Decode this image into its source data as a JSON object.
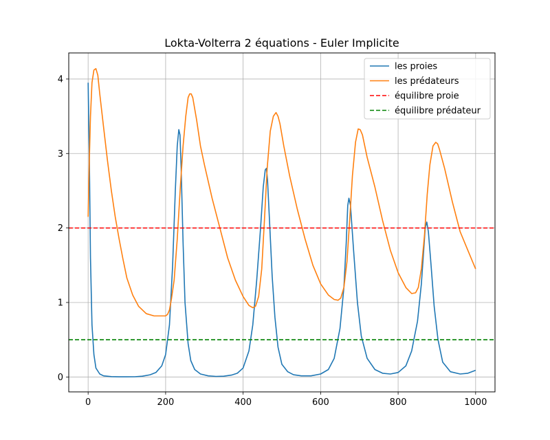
{
  "chart_data": {
    "type": "line",
    "title": "Lokta-Volterra 2 équations - Euler Implicite",
    "xlabel": "",
    "ylabel": "",
    "xlim": [
      -50,
      1050
    ],
    "ylim": [
      -0.2,
      4.35
    ],
    "xticks": [
      0,
      200,
      400,
      600,
      800,
      1000
    ],
    "yticks": [
      0,
      1,
      2,
      3,
      4
    ],
    "grid": true,
    "legend_position": "top-right",
    "colors": {
      "proies": "#1f77b4",
      "predateurs": "#ff7f0e",
      "equilibre_proie": "#ff0000",
      "equilibre_predateur": "#008000"
    },
    "series": [
      {
        "name": "les proies",
        "style": "solid",
        "x": [
          0,
          3,
          6,
          10,
          15,
          20,
          30,
          40,
          60,
          80,
          100,
          120,
          140,
          160,
          175,
          190,
          200,
          210,
          218,
          225,
          230,
          234,
          237,
          240,
          245,
          250,
          258,
          265,
          275,
          290,
          310,
          330,
          350,
          370,
          385,
          400,
          415,
          425,
          435,
          445,
          452,
          457,
          460,
          463,
          468,
          475,
          482,
          490,
          500,
          515,
          530,
          550,
          575,
          600,
          620,
          635,
          650,
          660,
          666,
          670,
          673,
          677,
          685,
          695,
          705,
          720,
          740,
          760,
          780,
          800,
          820,
          835,
          850,
          860,
          866,
          870,
          874,
          878,
          885,
          893,
          903,
          915,
          935,
          960,
          980,
          1000
        ],
        "values": [
          3.95,
          3.0,
          1.6,
          0.7,
          0.3,
          0.12,
          0.04,
          0.015,
          0.005,
          0.002,
          0.002,
          0.003,
          0.01,
          0.03,
          0.06,
          0.15,
          0.3,
          0.7,
          1.5,
          2.5,
          3.1,
          3.32,
          3.25,
          2.8,
          1.8,
          1.0,
          0.45,
          0.22,
          0.1,
          0.04,
          0.015,
          0.008,
          0.01,
          0.025,
          0.05,
          0.12,
          0.35,
          0.7,
          1.3,
          2.0,
          2.55,
          2.78,
          2.8,
          2.65,
          2.1,
          1.35,
          0.8,
          0.4,
          0.17,
          0.07,
          0.03,
          0.015,
          0.015,
          0.04,
          0.1,
          0.25,
          0.65,
          1.2,
          1.8,
          2.3,
          2.4,
          2.3,
          1.7,
          1.0,
          0.55,
          0.25,
          0.1,
          0.05,
          0.04,
          0.06,
          0.15,
          0.35,
          0.75,
          1.25,
          1.7,
          2.0,
          2.08,
          1.95,
          1.5,
          0.95,
          0.5,
          0.2,
          0.07,
          0.04,
          0.05,
          0.09
        ]
      },
      {
        "name": "les prédateurs",
        "style": "solid",
        "x": [
          0,
          3,
          6,
          10,
          15,
          20,
          25,
          30,
          40,
          50,
          60,
          70,
          80,
          90,
          100,
          115,
          130,
          150,
          170,
          185,
          195,
          200,
          205,
          210,
          215,
          222,
          230,
          238,
          245,
          252,
          258,
          262,
          266,
          270,
          280,
          290,
          300,
          320,
          340,
          360,
          380,
          400,
          415,
          425,
          432,
          440,
          448,
          455,
          462,
          470,
          478,
          485,
          490,
          495,
          505,
          520,
          540,
          560,
          580,
          600,
          620,
          635,
          645,
          652,
          660,
          668,
          675,
          682,
          690,
          697,
          702,
          708,
          720,
          740,
          760,
          780,
          800,
          820,
          835,
          845,
          852,
          860,
          868,
          875,
          882,
          890,
          897,
          902,
          907,
          920,
          940,
          960,
          980,
          1000
        ],
        "values": [
          2.15,
          2.9,
          3.5,
          3.95,
          4.12,
          4.14,
          4.05,
          3.8,
          3.35,
          2.9,
          2.5,
          2.15,
          1.85,
          1.58,
          1.33,
          1.1,
          0.95,
          0.85,
          0.82,
          0.82,
          0.82,
          0.82,
          0.84,
          0.9,
          1.05,
          1.3,
          1.85,
          2.55,
          3.1,
          3.5,
          3.75,
          3.8,
          3.8,
          3.75,
          3.45,
          3.1,
          2.85,
          2.4,
          2.0,
          1.6,
          1.3,
          1.08,
          0.96,
          0.93,
          0.95,
          1.08,
          1.45,
          2.1,
          2.8,
          3.3,
          3.5,
          3.55,
          3.5,
          3.4,
          3.1,
          2.7,
          2.25,
          1.85,
          1.5,
          1.25,
          1.1,
          1.04,
          1.03,
          1.06,
          1.2,
          1.55,
          2.1,
          2.7,
          3.15,
          3.33,
          3.32,
          3.25,
          2.95,
          2.55,
          2.1,
          1.7,
          1.4,
          1.2,
          1.12,
          1.13,
          1.2,
          1.45,
          1.9,
          2.45,
          2.85,
          3.1,
          3.15,
          3.13,
          3.05,
          2.8,
          2.35,
          1.95,
          1.7,
          1.45
        ]
      },
      {
        "name": "équilibre proie",
        "style": "dashed",
        "y_constant": 2.0
      },
      {
        "name": "équilibre prédateur",
        "style": "dashed",
        "y_constant": 0.5
      }
    ]
  }
}
